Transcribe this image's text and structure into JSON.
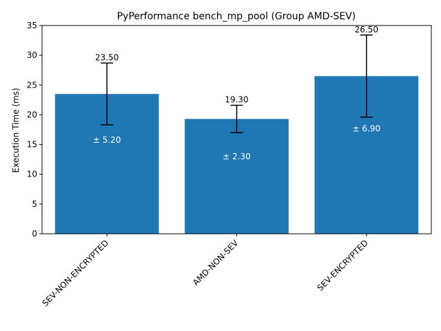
{
  "chart_data": {
    "type": "bar",
    "title": "PyPerformance bench_mp_pool (Group AMD-SEV)",
    "xlabel": "",
    "ylabel": "Execution Time (ms)",
    "ylim": [
      0,
      35
    ],
    "yticks": [
      0,
      5,
      10,
      15,
      20,
      25,
      30,
      35
    ],
    "categories": [
      "SEV-NON-ENCRYPTED",
      "AMD-NON-SEV",
      "SEV-ENCRYPTED"
    ],
    "values": [
      23.5,
      19.3,
      26.5
    ],
    "errors": [
      5.2,
      2.3,
      6.9
    ],
    "value_labels": [
      "23.50",
      "19.30",
      "26.50"
    ],
    "error_labels": [
      "± 5.20",
      "± 2.30",
      "± 6.90"
    ],
    "bar_color": "#1f77b4",
    "error_color": "#000000",
    "grid": false,
    "legend": "none"
  }
}
